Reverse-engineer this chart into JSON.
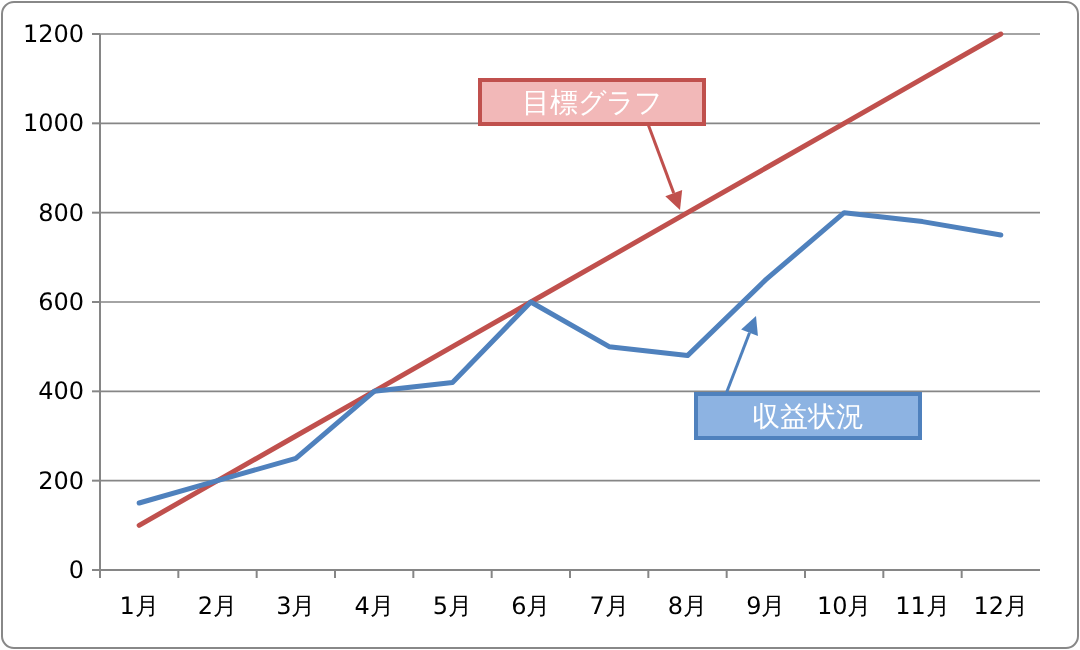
{
  "chart_data": {
    "type": "line",
    "categories": [
      "1月",
      "2月",
      "3月",
      "4月",
      "5月",
      "6月",
      "7月",
      "8月",
      "9月",
      "10月",
      "11月",
      "12月"
    ],
    "series": [
      {
        "color": "#c0504d",
        "values": [
          100,
          200,
          300,
          400,
          500,
          600,
          700,
          800,
          900,
          1000,
          1100,
          1200
        ]
      },
      {
        "color": "#4f81bd",
        "values": [
          150,
          200,
          250,
          400,
          420,
          600,
          500,
          480,
          650,
          800,
          780,
          750
        ]
      }
    ],
    "ylim": [
      0,
      1200
    ],
    "yticks": [
      0,
      200,
      400,
      600,
      800,
      1000,
      1200
    ],
    "grid": "y",
    "marker": "none",
    "line_style": "solid",
    "annotations": [
      "目標グラフ",
      "収益状況"
    ]
  }
}
